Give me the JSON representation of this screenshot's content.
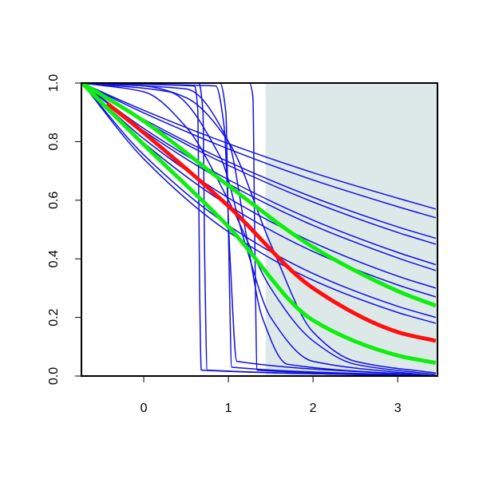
{
  "chart_data": {
    "type": "line",
    "xlim": [
      -0.736,
      3.47
    ],
    "ylim": [
      0,
      1
    ],
    "xticks": [
      0,
      1,
      2,
      3
    ],
    "yticks": [
      {
        "value": 0,
        "label": "0.0"
      },
      0.2,
      0.4,
      0.6,
      0.8,
      {
        "value": 1,
        "label": "1.0"
      }
    ],
    "shaded_region": {
      "x": [
        1.44,
        3.47
      ],
      "color": "#dde9e9"
    },
    "series": [
      {
        "color": "#1010e0",
        "linewidth": 1.5,
        "x": [
          -0.73,
          0,
          1,
          2,
          3,
          3.45
        ],
        "values": [
          1,
          0.907,
          0.793,
          0.694,
          0.607,
          0.57
        ]
      },
      {
        "color": "#1010e0",
        "linewidth": 1.5,
        "x": [
          -0.73,
          0,
          1,
          2,
          3,
          3.45
        ],
        "values": [
          1,
          0.898,
          0.775,
          0.669,
          0.578,
          0.54
        ]
      },
      {
        "color": "#1010e0",
        "linewidth": 1.5,
        "x": [
          -0.73,
          0,
          1,
          2,
          3,
          3.45
        ],
        "values": [
          1,
          0.876,
          0.731,
          0.61,
          0.509,
          0.47
        ]
      },
      {
        "color": "#1010e0",
        "linewidth": 1.5,
        "x": [
          -0.73,
          0,
          1,
          2,
          3,
          3.45
        ],
        "values": [
          1,
          0.87,
          0.719,
          0.594,
          0.49,
          0.45
        ]
      },
      {
        "color": "#1010e0",
        "linewidth": 1.5,
        "x": [
          -0.73,
          0,
          1,
          2,
          3,
          3.45
        ],
        "values": [
          1,
          0.845,
          0.67,
          0.532,
          0.422,
          0.38
        ]
      },
      {
        "color": "#1010e0",
        "linewidth": 1.5,
        "x": [
          -0.73,
          0,
          1,
          2,
          3,
          3.45
        ],
        "values": [
          1,
          0.837,
          0.656,
          0.514,
          0.403,
          0.36
        ]
      },
      {
        "color": "#1010e0",
        "linewidth": 1.5,
        "x": [
          -0.73,
          0,
          1,
          2,
          3,
          3.45
        ],
        "values": [
          1,
          0.81,
          0.608,
          0.456,
          0.341,
          0.3
        ]
      },
      {
        "color": "#1010e0",
        "linewidth": 1.5,
        "x": [
          -0.73,
          0,
          1,
          2,
          3,
          3.45
        ],
        "values": [
          1,
          0.796,
          0.582,
          0.425,
          0.311,
          0.27
        ]
      },
      {
        "color": "#1010e0",
        "linewidth": 1.5,
        "x": [
          -0.73,
          0,
          1,
          2,
          3,
          3.45
        ],
        "values": [
          1,
          0.755,
          0.514,
          0.35,
          0.238,
          0.2
        ]
      },
      {
        "color": "#1010e0",
        "linewidth": 1.5,
        "x": [
          -0.73,
          0,
          1,
          2,
          3,
          3.45
        ],
        "values": [
          1,
          0.741,
          0.492,
          0.327,
          0.217,
          0.18
        ]
      },
      {
        "color": "#1010e0",
        "linewidth": 1.5,
        "x": [
          -0.73,
          0,
          0.5,
          1,
          1.5,
          2,
          2.5,
          3.45
        ],
        "values": [
          1,
          0.97,
          0.85,
          0.6,
          0.3,
          0.12,
          0.04,
          0.005
        ]
      },
      {
        "color": "#1010e0",
        "linewidth": 1.5,
        "x": [
          -0.73,
          0,
          0.5,
          1,
          1.5,
          2,
          2.5,
          3.45
        ],
        "values": [
          1,
          0.99,
          0.95,
          0.8,
          0.45,
          0.15,
          0.05,
          0.01
        ]
      },
      {
        "color": "#1010e0",
        "linewidth": 1.5,
        "x": [
          -0.73,
          0.6,
          0.64,
          0.66,
          0.68,
          3.45
        ],
        "values": [
          1,
          0.99,
          0.9,
          0.3,
          0.02,
          0
        ]
      },
      {
        "color": "#1010e0",
        "linewidth": 1.5,
        "x": [
          -0.73,
          0.65,
          0.7,
          0.72,
          0.75,
          3.45
        ],
        "values": [
          1,
          1,
          0.9,
          0.4,
          0.02,
          0
        ]
      },
      {
        "color": "#1010e0",
        "linewidth": 1.5,
        "x": [
          -0.73,
          0.9,
          0.97,
          1,
          1.04,
          3.45
        ],
        "values": [
          1,
          1,
          0.9,
          0.5,
          0.03,
          0
        ]
      },
      {
        "color": "#1010e0",
        "linewidth": 1.5,
        "x": [
          -0.73,
          0.85,
          0.95,
          1.02,
          1.1,
          3.45
        ],
        "values": [
          1,
          0.99,
          0.85,
          0.4,
          0.05,
          0
        ]
      },
      {
        "color": "#1010e0",
        "linewidth": 1.5,
        "x": [
          -0.73,
          1.25,
          1.29,
          1.31,
          1.34,
          3.45
        ],
        "values": [
          1,
          1,
          0.95,
          0.5,
          0.02,
          0
        ]
      },
      {
        "color": "#1010e0",
        "linewidth": 1.5,
        "x": [
          -0.73,
          0.5,
          1,
          1.2,
          1.4,
          1.7,
          3.45
        ],
        "values": [
          1,
          0.98,
          0.8,
          0.5,
          0.2,
          0.04,
          0
        ]
      },
      {
        "color": "#1010e0",
        "linewidth": 1.5,
        "x": [
          -0.73,
          0.3,
          0.9,
          1.2,
          1.5,
          2,
          3.45
        ],
        "values": [
          1,
          0.97,
          0.75,
          0.45,
          0.2,
          0.05,
          0
        ]
      },
      {
        "color": "#ff1010",
        "linewidth": 5,
        "x": [
          -0.43,
          0,
          1,
          2,
          3,
          3.45
        ],
        "values": [
          0.93,
          0.83,
          0.58,
          0.3,
          0.15,
          0.12
        ]
      },
      {
        "color": "#10ee10",
        "linewidth": 5,
        "x": [
          -0.73,
          0,
          1,
          2,
          3,
          3.45
        ],
        "values": [
          1,
          0.87,
          0.65,
          0.44,
          0.29,
          0.24
        ]
      },
      {
        "color": "#10ee10",
        "linewidth": 5,
        "x": [
          -0.73,
          0,
          1,
          2,
          3,
          3.45
        ],
        "values": [
          1,
          0.79,
          0.51,
          0.19,
          0.07,
          0.045
        ]
      }
    ]
  }
}
